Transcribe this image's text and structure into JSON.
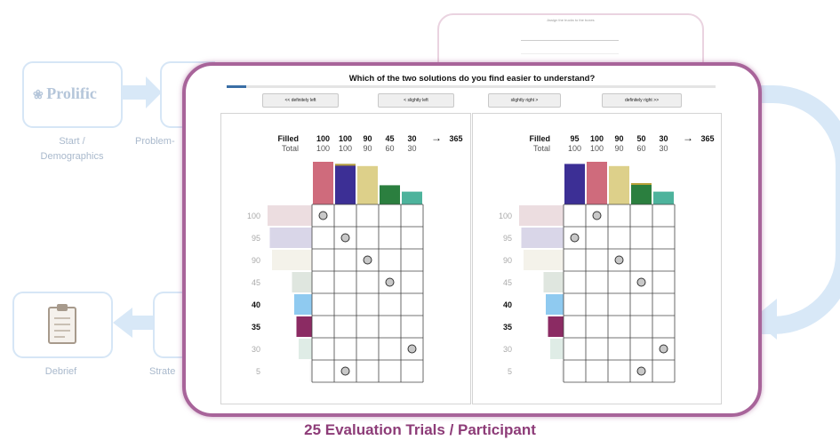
{
  "background": {
    "prolific_logo": "Prolific",
    "stage_start_label": "Start / Demographics",
    "stage_problem_label": "Problem-",
    "stage_debrief_label": "Debrief",
    "stage_strategy_label": "Strate",
    "preview_text": "Assign the trucks to the boxes",
    "clipboard_icon": "clipboard-icon",
    "colors": {
      "stage_border": "#d6e6f6",
      "arrow": "#d8e8f7",
      "label": "#a9b9cc"
    }
  },
  "trial": {
    "question": "Which of the two solutions do you find easier to understand?",
    "progress": 0.04,
    "choices": [
      "<< definitely left",
      "< slightly left",
      "slightly right >",
      "definitely right >>"
    ]
  },
  "solutions": [
    {
      "side": "left",
      "filled_label": "Filled",
      "total_label": "Total",
      "filled": [
        "100",
        "100",
        "90",
        "45",
        "30"
      ],
      "total": [
        "100",
        "100",
        "90",
        "60",
        "30"
      ],
      "arrow": "→",
      "sum": "365",
      "column_colors": [
        "#cf6b7c",
        "#3c2f95",
        "#ddd08a",
        "#2b7f3f",
        "#4db39c"
      ],
      "column_heights": [
        1.0,
        0.95,
        0.9,
        0.45,
        0.3
      ],
      "column_overflow": [
        false,
        true,
        false,
        false,
        false
      ],
      "row_labels": [
        "100",
        "95",
        "90",
        "45",
        "40",
        "35",
        "30",
        "5"
      ],
      "row_bold": [
        false,
        false,
        false,
        false,
        true,
        true,
        false,
        false
      ],
      "row_colors": [
        "#ecdde0",
        "#d9d6e8",
        "#f4f2ea",
        "#dfe6df",
        "#8fcaf0",
        "#8b2b63",
        "#dfece6",
        "#f4f4f4"
      ],
      "row_widths": [
        1.0,
        0.95,
        0.9,
        0.45,
        0.4,
        0.35,
        0.3,
        0.05
      ],
      "markers": [
        [
          0,
          0
        ],
        [
          1,
          1
        ],
        [
          2,
          2
        ],
        [
          3,
          3
        ],
        [
          6,
          4
        ],
        [
          7,
          1
        ]
      ]
    },
    {
      "side": "right",
      "filled_label": "Filled",
      "total_label": "Total",
      "filled": [
        "95",
        "100",
        "90",
        "50",
        "30"
      ],
      "total": [
        "100",
        "100",
        "90",
        "60",
        "30"
      ],
      "arrow": "→",
      "sum": "365",
      "column_colors": [
        "#3c2f95",
        "#cf6b7c",
        "#ddd08a",
        "#2b7f3f",
        "#4db39c"
      ],
      "column_heights": [
        0.95,
        1.0,
        0.9,
        0.5,
        0.3
      ],
      "column_overflow": [
        false,
        false,
        false,
        true,
        false
      ],
      "row_labels": [
        "100",
        "95",
        "90",
        "45",
        "40",
        "35",
        "30",
        "5"
      ],
      "row_bold": [
        false,
        false,
        false,
        false,
        true,
        true,
        false,
        false
      ],
      "row_colors": [
        "#ecdde0",
        "#d9d6e8",
        "#f4f2ea",
        "#dfe6df",
        "#8fcaf0",
        "#8b2b63",
        "#dfece6",
        "#f4f4f4"
      ],
      "row_widths": [
        1.0,
        0.95,
        0.9,
        0.45,
        0.4,
        0.35,
        0.3,
        0.05
      ],
      "markers": [
        [
          0,
          1
        ],
        [
          1,
          0
        ],
        [
          2,
          2
        ],
        [
          3,
          3
        ],
        [
          6,
          4
        ],
        [
          7,
          3
        ]
      ]
    }
  ],
  "caption": "25 Evaluation Trials / Participant"
}
